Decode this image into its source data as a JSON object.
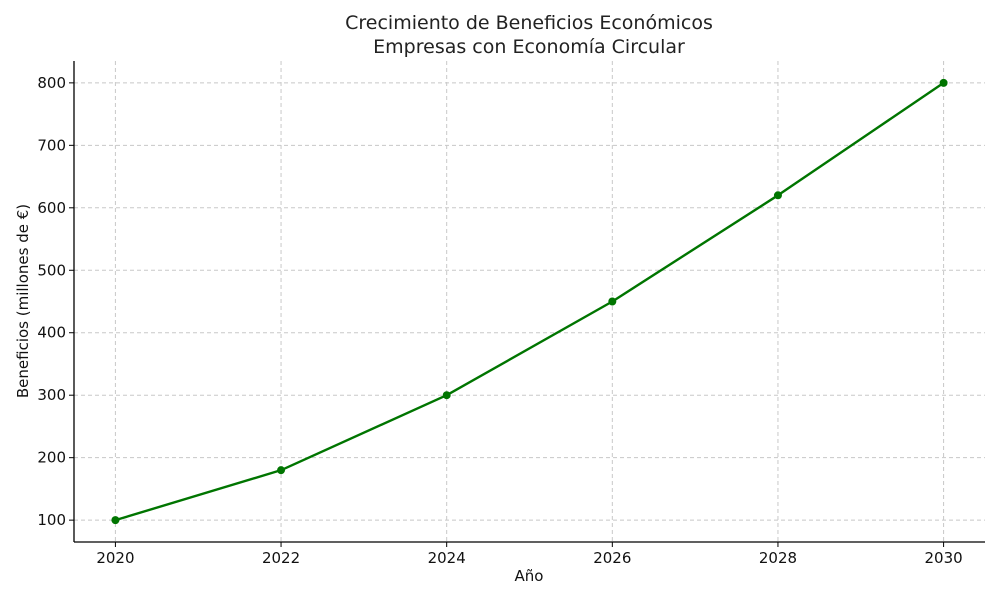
{
  "chart_data": {
    "type": "line",
    "title": "Crecimiento de Beneficios Económicos",
    "subtitle": "Empresas con Economía Circular",
    "xlabel": "Año",
    "ylabel": "Beneficios (millones de €)",
    "x": [
      2020,
      2022,
      2024,
      2026,
      2028,
      2030
    ],
    "series": [
      {
        "values": [
          100,
          180,
          300,
          450,
          620,
          800
        ]
      }
    ],
    "xlim": [
      2019.5,
      2030.5
    ],
    "ylim": [
      65,
      835
    ],
    "xticks": [
      2020,
      2022,
      2024,
      2026,
      2028,
      2030
    ],
    "yticks": [
      100,
      200,
      300,
      400,
      500,
      600,
      700,
      800
    ],
    "grid": true,
    "marker": "circle",
    "line_color": "#007500"
  }
}
